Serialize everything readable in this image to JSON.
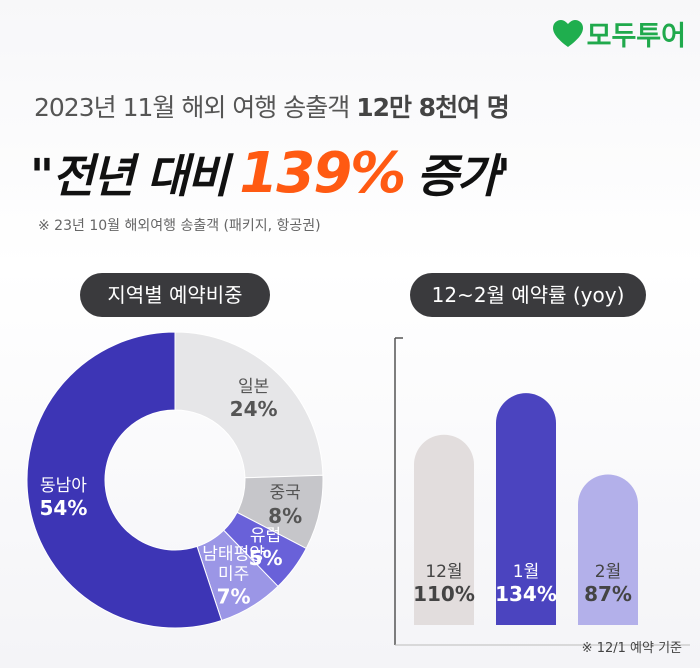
{
  "brand": "모두투어",
  "headline": "2023년 11월 해외 여행 송출객",
  "headline_bold": "12만 8천여 명",
  "main_open": "\"전년 대비",
  "main_highlight": "139%",
  "main_close": "증가'",
  "footnote": "※ 23년 10월 해외여행 송출객 (패키지, 항공권)",
  "chart_data": [
    {
      "type": "pie",
      "title": "지역별 예약비중",
      "categories": [
        "일본",
        "중국",
        "유럽",
        "남태평양\n미주",
        "동남아"
      ],
      "values": [
        24,
        8,
        5,
        7,
        54
      ],
      "value_labels": [
        "24%",
        "8%",
        "5%",
        "7%",
        "54%"
      ],
      "colors": [
        "#e6e6e8",
        "#c6c6ca",
        "#6961d9",
        "#9b96e6",
        "#3d35b5"
      ],
      "donut": true
    },
    {
      "type": "bar",
      "title": "12~2월 예약률 (yoy)",
      "categories": [
        "12월",
        "1월",
        "2월"
      ],
      "values": [
        110,
        134,
        87
      ],
      "value_labels": [
        "110%",
        "134%",
        "87%"
      ],
      "colors": [
        "#e2dddd",
        "#4b44bf",
        "#b3b0ea"
      ],
      "note": "※ 12/1 예약 기준"
    }
  ]
}
